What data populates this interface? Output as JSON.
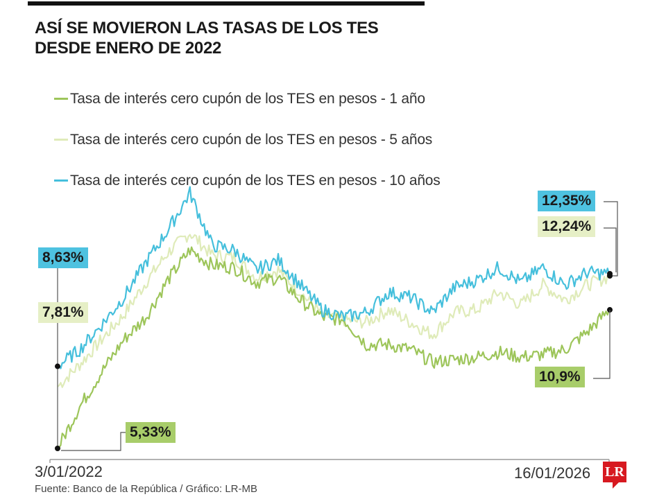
{
  "header": {
    "title_line1": "ASÍ SE MOVIERON LAS TASAS DE LOS TES",
    "title_line2": "DESDE ENERO DE 2022"
  },
  "colors": {
    "y1": "#9dc55a",
    "y5": "#dfebb9",
    "y10": "#45bfdc",
    "label_y1_bg": "#a8cd6a",
    "label_y5_bg": "#e6efc6",
    "label_y10_bg": "#4ec2e0",
    "logo": "#d71920"
  },
  "footer": {
    "source": "Fuente: Banco de la República / Gráfico: LR-MB",
    "logo_text": "LR"
  },
  "chart_data": {
    "type": "line",
    "title": "ASÍ SE MOVIERON LAS TASAS DE LOS TES DESDE ENERO DE 2022",
    "xlabel": "",
    "ylabel": "",
    "x_start": "3/01/2022",
    "x_end": "16/01/2026",
    "grid": false,
    "legend_position": "top-left",
    "ylim": [
      4.7,
      16.2
    ],
    "x": [
      "2022-01",
      "2022-03",
      "2022-05",
      "2022-07",
      "2022-09",
      "2022-10",
      "2022-11",
      "2023-01",
      "2023-03",
      "2023-05",
      "2023-07",
      "2023-09",
      "2023-11",
      "2024-01",
      "2024-03",
      "2024-05",
      "2024-07",
      "2024-09",
      "2024-11",
      "2025-01",
      "2025-03",
      "2025-05",
      "2025-07",
      "2025-09",
      "2025-11",
      "2026-01"
    ],
    "series": [
      {
        "name": "Tasa de interés cero cupón de los TES en pesos - 1 año",
        "color_key": "y1",
        "start_label": "5,33%",
        "end_label": "10,9%",
        "values": [
          5.33,
          7.0,
          8.4,
          9.7,
          10.6,
          12.1,
          13.3,
          12.7,
          12.6,
          12.0,
          12.2,
          11.3,
          10.6,
          10.5,
          9.5,
          9.5,
          9.3,
          8.8,
          8.9,
          9.0,
          9.2,
          9.0,
          9.1,
          9.3,
          10.0,
          10.9
        ]
      },
      {
        "name": "Tasa de interés cero cupón de los TES en pesos - 5 años",
        "color_key": "y5",
        "start_label": "7,81%",
        "end_label": "12,24%",
        "values": [
          7.81,
          8.7,
          9.7,
          10.7,
          12.0,
          13.2,
          14.0,
          13.1,
          13.0,
          12.2,
          12.5,
          11.6,
          10.7,
          10.5,
          10.4,
          10.9,
          10.4,
          9.9,
          10.8,
          10.9,
          11.6,
          11.1,
          11.9,
          11.3,
          11.9,
          12.24
        ]
      },
      {
        "name": "Tasa de interés cero cupón de los TES en pesos - 10 años",
        "color_key": "y10",
        "start_label": "8,63%",
        "end_label": "12,35%",
        "values": [
          8.63,
          9.3,
          10.3,
          11.4,
          12.8,
          14.1,
          15.6,
          13.5,
          13.3,
          12.5,
          12.9,
          11.9,
          10.9,
          10.6,
          10.8,
          11.6,
          11.4,
          10.8,
          11.8,
          12.1,
          12.6,
          12.0,
          12.6,
          11.9,
          12.4,
          12.35
        ]
      }
    ]
  }
}
